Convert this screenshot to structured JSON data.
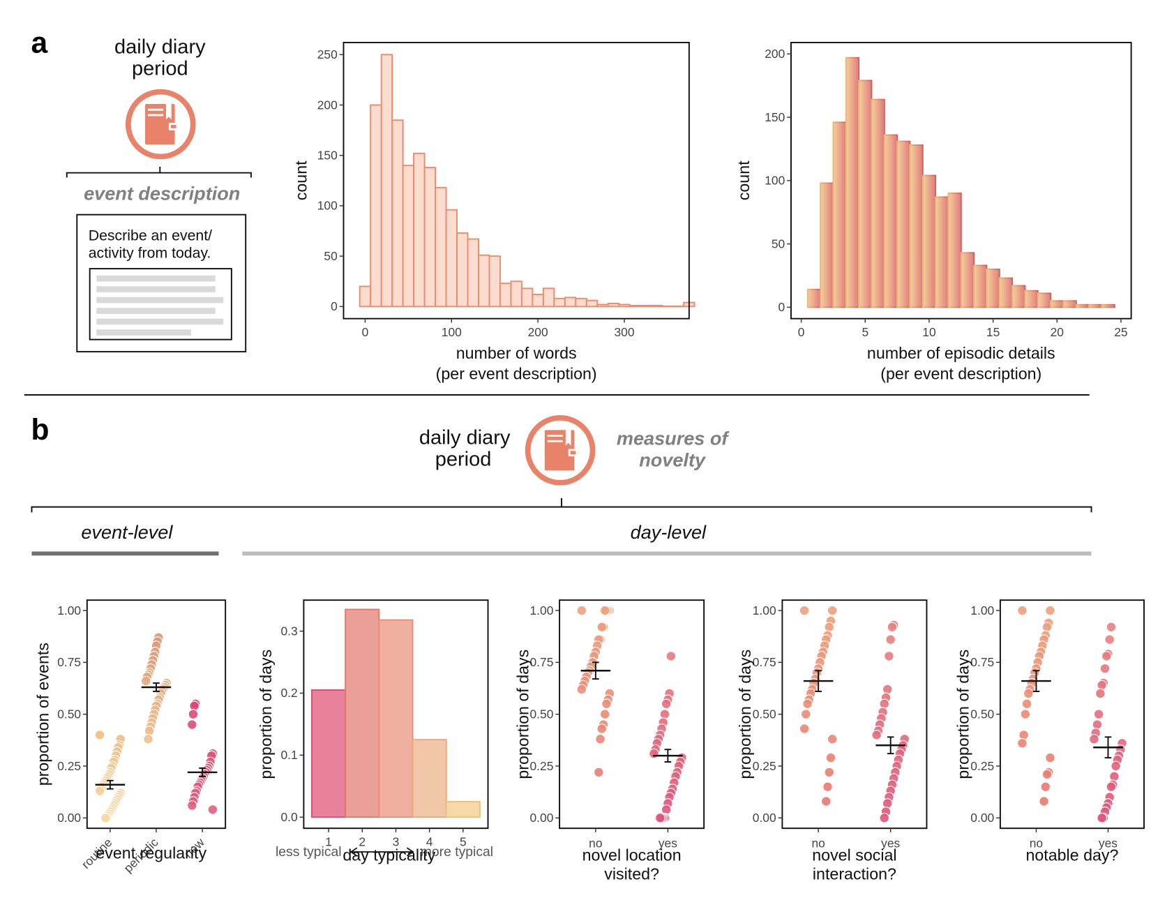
{
  "panel_a": {
    "letter": "a",
    "period_title": [
      "daily diary",
      "period"
    ],
    "event_label": "event description",
    "prompt": [
      "Describe an event/",
      "activity from today."
    ]
  },
  "panel_b": {
    "letter": "b",
    "period_title": [
      "daily diary",
      "period"
    ],
    "measures": [
      "measures of",
      "novelty"
    ],
    "event_level": "event-level",
    "day_level": "day-level",
    "typicality_left": "less typical",
    "typicality_right": "more typical"
  },
  "colors": {
    "orange": "#e8836a",
    "peach": "#f7c99a",
    "salmon": "#eba28e",
    "pink": "#d94f72",
    "dark_grey": "#707070",
    "light_grey": "#bcbcbc"
  },
  "icons": [
    "book-icon",
    "book-icon",
    "double-arrow-icon"
  ],
  "chart_data": [
    {
      "id": "words",
      "type": "bar",
      "xlabel": [
        "number of words",
        "(per event description)"
      ],
      "ylabel": "count",
      "xlim": [
        -25,
        375
      ],
      "ylim": [
        -12,
        262
      ],
      "xticks": [
        0,
        100,
        200,
        300
      ],
      "yticks": [
        0,
        50,
        100,
        150,
        200,
        250
      ],
      "bin_width": 12.5,
      "bins_start": -6.25,
      "values": [
        20,
        200,
        250,
        185,
        140,
        152,
        138,
        118,
        96,
        73,
        67,
        51,
        50,
        23,
        25,
        18,
        12,
        18,
        8,
        9,
        8,
        6,
        2,
        3,
        2,
        1,
        1,
        1,
        0,
        0,
        4
      ]
    },
    {
      "id": "details",
      "type": "bar",
      "xlabel": [
        "number of episodic details",
        "(per event description)"
      ],
      "ylabel": "count",
      "xlim": [
        -0.8,
        25.8
      ],
      "ylim": [
        -9,
        209
      ],
      "xticks": [
        0,
        5,
        10,
        15,
        20,
        25
      ],
      "yticks": [
        0,
        50,
        100,
        150,
        200
      ],
      "bin_width": 1,
      "bins_start": 0.5,
      "values": [
        14,
        98,
        146,
        197,
        179,
        164,
        136,
        131,
        128,
        104,
        87,
        90,
        43,
        33,
        30,
        23,
        17,
        13,
        11,
        5,
        5,
        2,
        2,
        2
      ]
    },
    {
      "id": "regularity",
      "type": "scatter",
      "xlabel": [
        "event regularity"
      ],
      "ylabel": "proportion of events",
      "ylim": [
        -0.05,
        1.05
      ],
      "yticks": [
        "0.00",
        "0.25",
        "0.50",
        "0.75",
        "1.00"
      ],
      "categories": [
        "routine",
        "periodic",
        "new"
      ],
      "means": [
        0.16,
        0.63,
        0.22
      ],
      "se": [
        0.02,
        0.02,
        0.02
      ],
      "series": [
        {
          "values": [
            0.4,
            0.38,
            0.35,
            0.34,
            0.32,
            0.3,
            0.28,
            0.27,
            0.25,
            0.24,
            0.22,
            0.21,
            0.2,
            0.19,
            0.18,
            0.17,
            0.16,
            0.15,
            0.14,
            0.13,
            0.12,
            0.11,
            0.1,
            0.09,
            0.08,
            0.07,
            0.06,
            0.05,
            0.04,
            0.03,
            0.02,
            0.01,
            0.0,
            0.0
          ]
        },
        {
          "values": [
            0.87,
            0.85,
            0.83,
            0.8,
            0.78,
            0.76,
            0.74,
            0.72,
            0.7,
            0.69,
            0.68,
            0.66,
            0.65,
            0.64,
            0.63,
            0.62,
            0.61,
            0.6,
            0.58,
            0.57,
            0.55,
            0.54,
            0.52,
            0.5,
            0.48,
            0.46,
            0.44,
            0.42,
            0.38
          ]
        },
        {
          "values": [
            0.55,
            0.54,
            0.5,
            0.45,
            0.31,
            0.3,
            0.27,
            0.25,
            0.24,
            0.23,
            0.22,
            0.21,
            0.2,
            0.19,
            0.18,
            0.17,
            0.16,
            0.15,
            0.13,
            0.12,
            0.1,
            0.08,
            0.06,
            0.04
          ]
        }
      ]
    },
    {
      "id": "typicality",
      "type": "bar",
      "xlabel": [
        "day typicality"
      ],
      "ylabel": "proportion of days",
      "ylim": [
        -0.018,
        0.35
      ],
      "yticks": [
        "0.0",
        "0.1",
        "0.2",
        "0.3"
      ],
      "categories": [
        "1",
        "2",
        "3",
        "4",
        "5"
      ],
      "values": [
        0.205,
        0.335,
        0.318,
        0.125,
        0.025
      ]
    },
    {
      "id": "location",
      "type": "scatter",
      "xlabel": [
        "novel location",
        "visited?"
      ],
      "ylabel": "proportion of days",
      "ylim": [
        -0.05,
        1.05
      ],
      "yticks": [
        "0.00",
        "0.25",
        "0.50",
        "0.75",
        "1.00"
      ],
      "categories": [
        "no",
        "yes"
      ],
      "means": [
        0.71,
        0.3
      ],
      "se": [
        0.04,
        0.03
      ],
      "series": [
        {
          "values": [
            1.0,
            1.0,
            1.0,
            1.0,
            1.0,
            0.92,
            0.92,
            0.86,
            0.86,
            0.83,
            0.8,
            0.78,
            0.75,
            0.73,
            0.71,
            0.7,
            0.68,
            0.66,
            0.64,
            0.62,
            0.6,
            0.57,
            0.55,
            0.5,
            0.45,
            0.43,
            0.38,
            0.22
          ]
        },
        {
          "values": [
            0.78,
            0.6,
            0.57,
            0.55,
            0.5,
            0.46,
            0.43,
            0.4,
            0.38,
            0.36,
            0.33,
            0.31,
            0.29,
            0.27,
            0.25,
            0.22,
            0.2,
            0.17,
            0.14,
            0.12,
            0.1,
            0.07,
            0.04,
            0.0,
            0.0,
            0.0,
            0.0
          ]
        }
      ]
    },
    {
      "id": "social",
      "type": "scatter",
      "xlabel": [
        "novel social",
        "interaction?"
      ],
      "ylabel": "proportion of days",
      "ylim": [
        -0.05,
        1.05
      ],
      "yticks": [
        "0.00",
        "0.25",
        "0.50",
        "0.75",
        "1.00"
      ],
      "categories": [
        "no",
        "yes"
      ],
      "means": [
        0.66,
        0.35
      ],
      "se": [
        0.05,
        0.04
      ],
      "series": [
        {
          "values": [
            1.0,
            1.0,
            0.95,
            0.92,
            0.88,
            0.86,
            0.83,
            0.8,
            0.78,
            0.75,
            0.72,
            0.7,
            0.67,
            0.65,
            0.62,
            0.6,
            0.57,
            0.55,
            0.5,
            0.43,
            0.38,
            0.29,
            0.22,
            0.15,
            0.08
          ]
        },
        {
          "values": [
            0.93,
            0.92,
            0.86,
            0.78,
            0.62,
            0.58,
            0.55,
            0.51,
            0.48,
            0.45,
            0.42,
            0.4,
            0.38,
            0.35,
            0.33,
            0.31,
            0.28,
            0.25,
            0.22,
            0.19,
            0.16,
            0.13,
            0.1,
            0.07,
            0.03,
            0.0
          ]
        }
      ]
    },
    {
      "id": "notable",
      "type": "scatter",
      "xlabel": [
        "notable day?"
      ],
      "ylabel": "proportion of days",
      "ylim": [
        -0.05,
        1.05
      ],
      "yticks": [
        "0.00",
        "0.25",
        "0.50",
        "0.75",
        "1.00"
      ],
      "categories": [
        "no",
        "yes"
      ],
      "means": [
        0.66,
        0.34
      ],
      "se": [
        0.05,
        0.05
      ],
      "series": [
        {
          "values": [
            1.0,
            1.0,
            0.94,
            0.92,
            0.88,
            0.86,
            0.83,
            0.8,
            0.78,
            0.75,
            0.72,
            0.7,
            0.67,
            0.65,
            0.62,
            0.6,
            0.55,
            0.5,
            0.4,
            0.36,
            0.29,
            0.22,
            0.21,
            0.15,
            0.08
          ]
        },
        {
          "values": [
            0.92,
            0.86,
            0.79,
            0.78,
            0.72,
            0.65,
            0.64,
            0.6,
            0.5,
            0.45,
            0.41,
            0.38,
            0.36,
            0.33,
            0.3,
            0.28,
            0.25,
            0.2,
            0.16,
            0.15,
            0.1,
            0.07,
            0.05,
            0.03,
            0.0,
            0.0
          ]
        }
      ]
    }
  ]
}
